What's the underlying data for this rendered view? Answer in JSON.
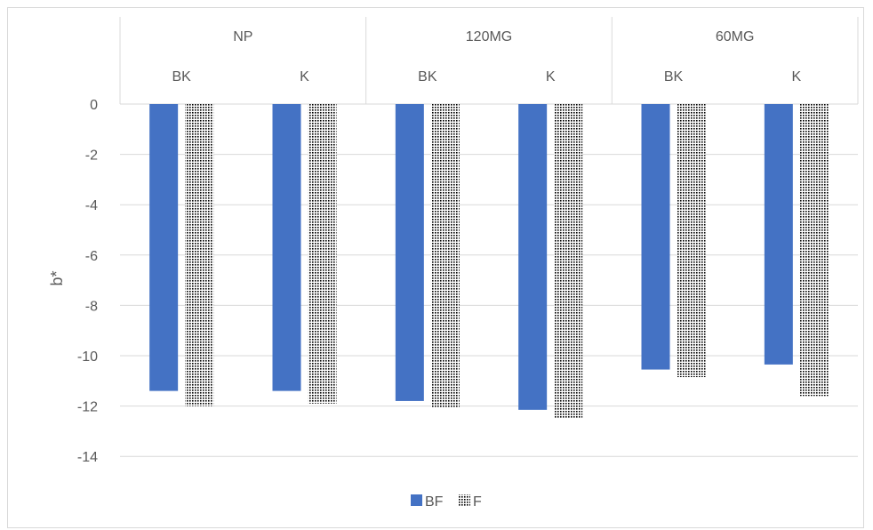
{
  "chart_data": {
    "type": "bar",
    "groups": [
      "NP",
      "120MG",
      "60MG"
    ],
    "subcategories": [
      "BK",
      "K"
    ],
    "categories": [
      "NP BK",
      "NP K",
      "120MG BK",
      "120MG K",
      "60MG BK",
      "60MG K"
    ],
    "series": [
      {
        "name": "BF",
        "values": [
          -11.4,
          -11.4,
          -11.8,
          -12.15,
          -10.55,
          -10.35
        ],
        "color": "#4472c4",
        "pattern": "solid"
      },
      {
        "name": "F",
        "values": [
          -12.0,
          -11.9,
          -12.05,
          -12.5,
          -10.85,
          -11.6
        ],
        "color": "#000000",
        "pattern": "dots"
      }
    ],
    "title": "",
    "xlabel": "",
    "ylabel": "b*",
    "ylim": [
      -14,
      0
    ],
    "yticks": [
      0,
      -2,
      -4,
      -6,
      -8,
      -10,
      -12,
      -14
    ],
    "grid": true,
    "legend_position": "bottom"
  }
}
